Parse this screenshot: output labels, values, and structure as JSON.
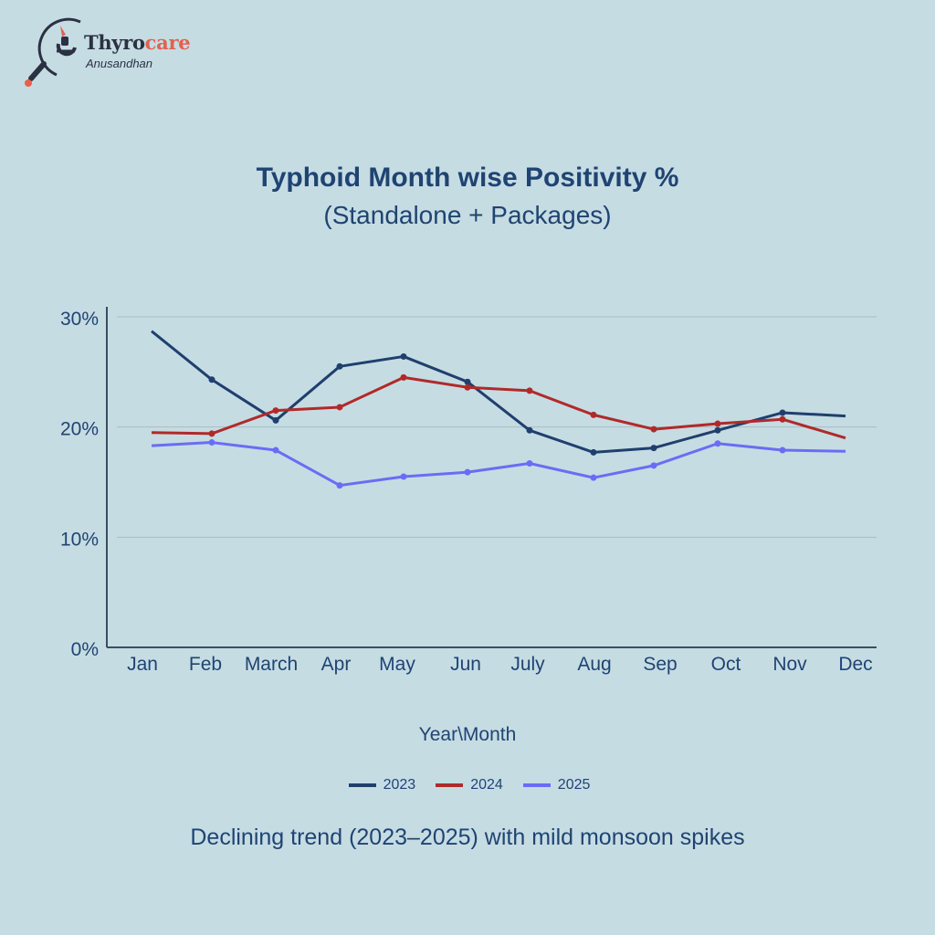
{
  "logo": {
    "brand_part1": "Thyro",
    "brand_part2": "care",
    "sub": "Anusandhan",
    "icon": "magnifier-microscope-icon"
  },
  "colors": {
    "background": "#c6dce3",
    "text": "#1f4472",
    "grid": "#a9bcc3",
    "axis": "#3a4f5e"
  },
  "chart_data": {
    "type": "line",
    "title": "Typhoid Month wise Positivity %",
    "subtitle": "(Standalone + Packages)",
    "xlabel": "Year\\Month",
    "ylabel": "",
    "categories": [
      "Jan",
      "Feb",
      "March",
      "Apr",
      "May",
      "Jun",
      "July",
      "Aug",
      "Sep",
      "Oct",
      "Nov",
      "Dec"
    ],
    "ylim": [
      0,
      30
    ],
    "yticks": [
      0,
      10,
      20,
      30
    ],
    "ytick_labels": [
      "0%",
      "10%",
      "20%",
      "30%"
    ],
    "grid": true,
    "legend_position": "bottom",
    "series": [
      {
        "name": "2023",
        "color": "#1f3f6e",
        "values": [
          28.7,
          24.3,
          20.6,
          25.5,
          26.4,
          24.1,
          19.7,
          17.7,
          18.1,
          19.7,
          21.3,
          21.0
        ]
      },
      {
        "name": "2024",
        "color": "#b02a2a",
        "values": [
          19.5,
          19.4,
          21.5,
          21.8,
          24.5,
          23.6,
          23.3,
          21.1,
          19.8,
          20.3,
          20.7,
          19.0
        ]
      },
      {
        "name": "2025",
        "color": "#6b6cf5",
        "values": [
          18.3,
          18.6,
          17.9,
          14.7,
          15.5,
          15.9,
          16.7,
          15.4,
          16.5,
          18.5,
          17.9,
          17.8
        ]
      }
    ]
  },
  "footer": "Declining trend (2023–2025) with mild monsoon spikes"
}
